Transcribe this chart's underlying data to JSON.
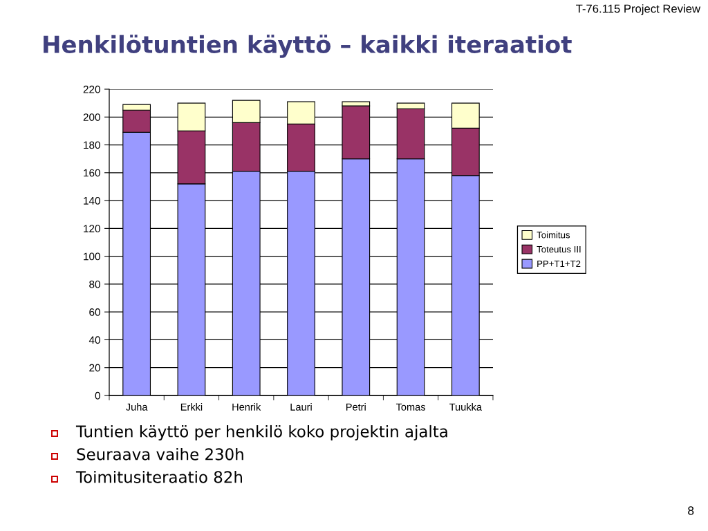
{
  "chart_data": {
    "type": "bar",
    "title": "Henkilötuntien käyttö – kaikki iteraatiot",
    "categories": [
      "Juha",
      "Erkki",
      "Henrik",
      "Lauri",
      "Petri",
      "Tomas",
      "Tuukka"
    ],
    "series": [
      {
        "name": "PP+T1+T2",
        "color": "#9999ff",
        "values": [
          189,
          152,
          161,
          161,
          170,
          170,
          158
        ]
      },
      {
        "name": "Toteutus III",
        "color": "#993366",
        "values": [
          16,
          38,
          35,
          34,
          38,
          36,
          34
        ]
      },
      {
        "name": "Toimitus",
        "color": "#ffffcc",
        "values": [
          4,
          20,
          16,
          16,
          3,
          4,
          18
        ]
      }
    ],
    "stacked": true,
    "ylim": [
      0,
      220
    ],
    "yticks": [
      0,
      20,
      40,
      60,
      80,
      100,
      120,
      140,
      160,
      180,
      200,
      220
    ],
    "grid": "y",
    "legend": "right",
    "annotations": [
      "T-76.115 Project Review",
      "Tuntien käyttö per henkilö koko projektin ajalta",
      "Seuraava vaihe 230h",
      "Toimitusiteraatio 82h",
      "8"
    ]
  }
}
